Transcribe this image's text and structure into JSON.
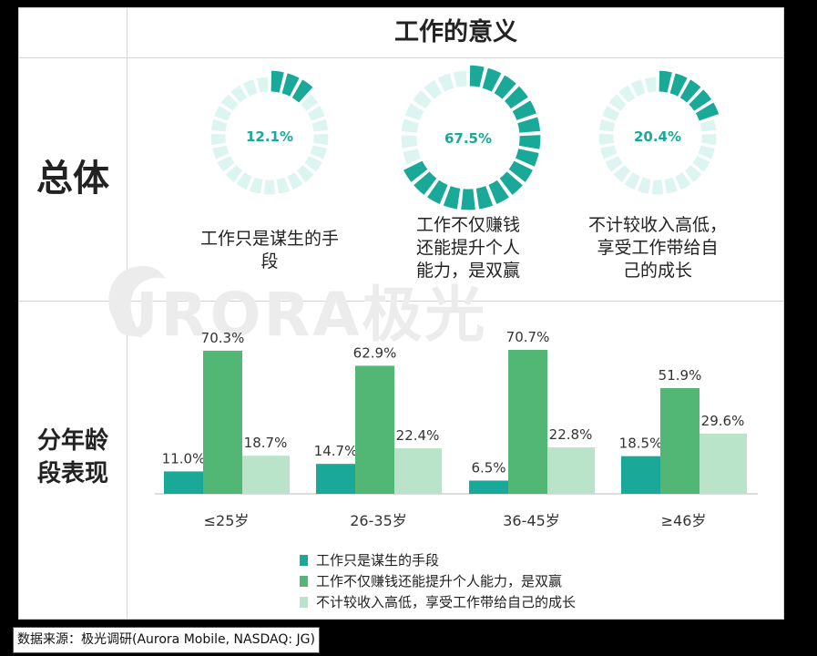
{
  "title": "工作的意义",
  "row_labels": {
    "overall": "总体",
    "by_age": "分年龄段表现"
  },
  "watermark": "URORA极光",
  "source": "数据来源：极光调研(Aurora Mobile, NASDAQ: JG)",
  "colors": {
    "dark": "#1aa999",
    "mid": "#52b774",
    "light": "#b9e4c9",
    "ring_bg": "#dcf5f1",
    "center_text": "#1aa999"
  },
  "chart_data": [
    {
      "type": "pie",
      "slices": [
        {
          "label": "工作只是谋生的手段",
          "value": 12.1,
          "display": "12.1%"
        },
        {
          "label": "工作不仅赚钱\n还能提升个人\n能力，是双赢",
          "value": 67.5,
          "display": "67.5%"
        },
        {
          "label": "不计较收入高低，\n享受工作带给自\n己的成长",
          "value": 20.4,
          "display": "20.4%"
        }
      ]
    },
    {
      "type": "bar",
      "categories": [
        "≤25岁",
        "26-35岁",
        "36-45岁",
        "≥46岁"
      ],
      "series": [
        {
          "name": "工作只是谋生的手段",
          "values": [
            11.0,
            14.7,
            6.5,
            18.5
          ],
          "labels": [
            "11.0%",
            "14.7%",
            "6.5%",
            "18.5%"
          ]
        },
        {
          "name": "工作不仅赚钱还能提升个人能力，是双赢",
          "values": [
            70.3,
            62.9,
            70.7,
            51.9
          ],
          "labels": [
            "70.3%",
            "62.9%",
            "70.7%",
            "51.9%"
          ]
        },
        {
          "name": "不计较收入高低，享受工作带给自己的成长",
          "values": [
            18.7,
            22.4,
            22.8,
            29.6
          ],
          "labels": [
            "18.7%",
            "22.4%",
            "22.8%",
            "29.6%"
          ]
        }
      ],
      "ylim": [
        0,
        70.7
      ],
      "grid": false,
      "legend": "bottom"
    }
  ]
}
